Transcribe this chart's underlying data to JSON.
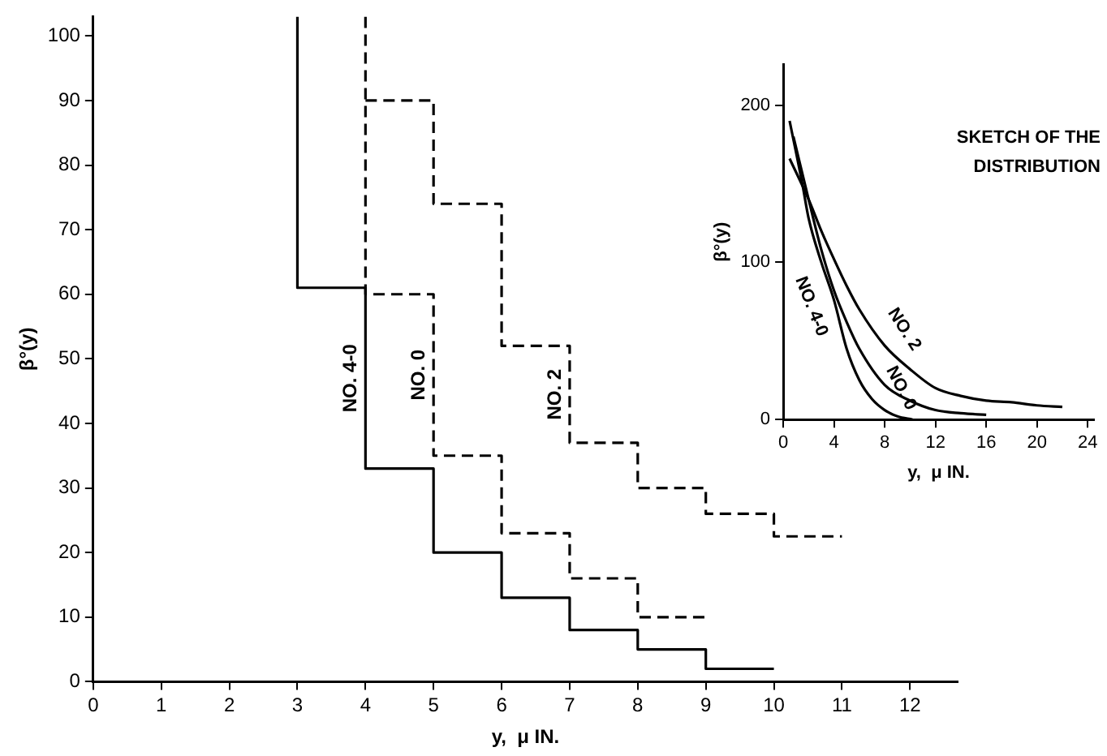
{
  "chart_data": [
    {
      "type": "step",
      "xlabel": "y,  μ IN.",
      "ylabel": "β°(y)",
      "xlim": [
        0,
        12.7
      ],
      "xticks": [
        0,
        1,
        2,
        3,
        4,
        5,
        6,
        7,
        8,
        9,
        10,
        11,
        12
      ],
      "ylim": [
        0,
        103
      ],
      "yticks": [
        0,
        10,
        20,
        30,
        40,
        50,
        60,
        70,
        80,
        90,
        100
      ],
      "grid": false,
      "legend": false,
      "marker": "none",
      "series": [
        {
          "name": "NO. 4-0",
          "color": "#000000",
          "line_style": "solid",
          "x": [
            3,
            3,
            4,
            5,
            6,
            7,
            8,
            9,
            10
          ],
          "values": [
            103,
            61,
            33,
            20,
            13,
            8,
            5,
            2,
            2
          ]
        },
        {
          "name": "NO. 0",
          "color": "#000000",
          "line_style": "dashed",
          "x": [
            4,
            4,
            5,
            6,
            7,
            8,
            9
          ],
          "values": [
            103,
            60,
            35,
            23,
            16,
            10,
            10
          ]
        },
        {
          "name": "NO. 2",
          "color": "#000000",
          "line_style": "dashed",
          "x": [
            4,
            5,
            6,
            7,
            8,
            9,
            10,
            11
          ],
          "values": [
            90,
            74,
            52,
            37,
            30,
            26,
            22.5,
            22.5
          ]
        }
      ]
    },
    {
      "type": "line",
      "title": "SKETCH OF THE DISTRIBUTION",
      "xlabel": "y,  μ IN.",
      "ylabel": "β°(y)",
      "xlim": [
        0,
        24.5
      ],
      "xticks": [
        0,
        4,
        8,
        12,
        16,
        20,
        24
      ],
      "ylim": [
        0,
        226
      ],
      "yticks": [
        0,
        100,
        200
      ],
      "grid": false,
      "legend": false,
      "marker": "none",
      "series": [
        {
          "name": "NO. 4-0",
          "color": "#000000",
          "line_style": "solid",
          "x": [
            0.5,
            1.5,
            2,
            3,
            4,
            5,
            6,
            7,
            8,
            9,
            10.2
          ],
          "values": [
            190,
            150,
            128,
            100,
            76,
            45,
            25,
            13,
            6,
            2,
            0
          ]
        },
        {
          "name": "NO. 0",
          "color": "#000000",
          "line_style": "solid",
          "x": [
            0.8,
            2,
            3,
            4,
            5,
            6,
            8,
            10,
            12,
            14,
            16
          ],
          "values": [
            180,
            140,
            108,
            82,
            62,
            45,
            22,
            12,
            6,
            4,
            3
          ]
        },
        {
          "name": "NO. 2",
          "color": "#000000",
          "line_style": "solid",
          "x": [
            0.5,
            2,
            3,
            4,
            5,
            6,
            8,
            10,
            12,
            14,
            16,
            18,
            20,
            22
          ],
          "values": [
            166,
            140,
            120,
            102,
            85,
            70,
            47,
            32,
            20,
            15,
            12,
            11,
            9,
            8
          ]
        }
      ]
    }
  ]
}
